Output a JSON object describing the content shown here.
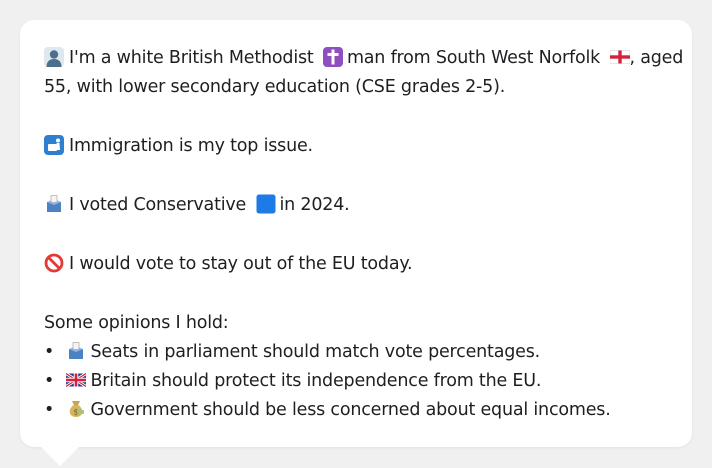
{
  "profile": {
    "line1_a": "I'm a white British Methodist",
    "line1_b": "man from South West Norfolk",
    "line1_c": ", aged",
    "line2": "55, with lower secondary education (CSE grades 2-5).",
    "icons": {
      "person": "person-silhouette-icon",
      "religion": "latin-cross-icon",
      "region": "england-flag-icon"
    }
  },
  "issue": {
    "text": "Immigration is my top issue.",
    "icon": "passport-control-icon"
  },
  "vote": {
    "text_a": "I voted Conservative",
    "text_b": "in 2024.",
    "icon": "ballot-box-icon",
    "party_icon": "blue-square-icon",
    "party_color": "#1e7ae6"
  },
  "eu": {
    "text": "I would vote to stay out of the EU today.",
    "icon": "prohibited-icon"
  },
  "opinions": {
    "heading": "Some opinions I hold:",
    "bullet": "•",
    "items": [
      {
        "text": "Seats in parliament should match vote percentages.",
        "icon": "ballot-box-icon"
      },
      {
        "text": "Britain should protect its independence from the EU.",
        "icon": "uk-flag-icon"
      },
      {
        "text": "Government should be less concerned about equal incomes.",
        "icon": "money-bag-icon"
      }
    ]
  }
}
